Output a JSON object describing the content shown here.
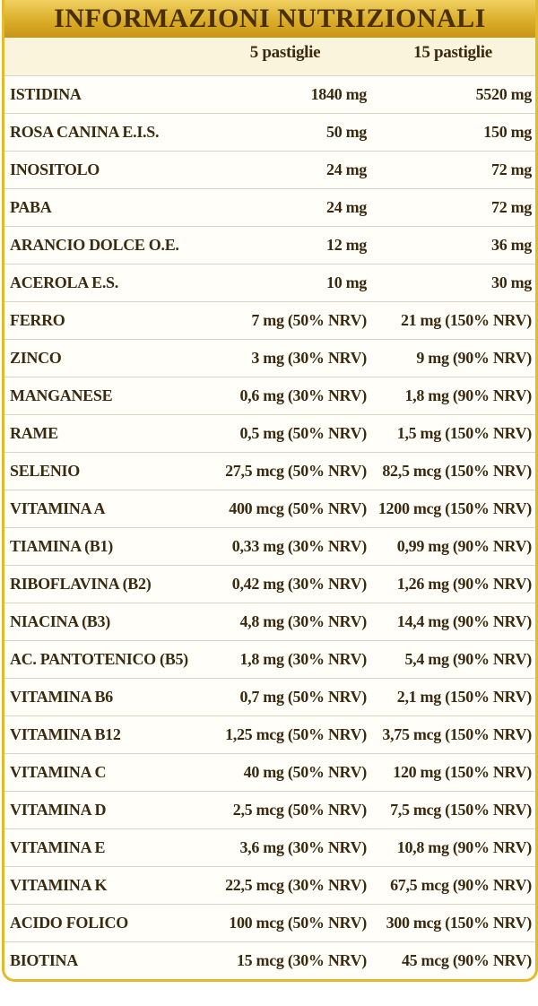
{
  "header": {
    "title": "INFORMAZIONI NUTRIZIONALI"
  },
  "table": {
    "columns": [
      "5 pastiglie",
      "15 pastiglie"
    ],
    "rows": [
      [
        "ISTIDINA",
        "1840 mg",
        "5520 mg"
      ],
      [
        "ROSA CANINA E.I.S.",
        "50 mg",
        "150 mg"
      ],
      [
        "INOSITOLO",
        "24 mg",
        "72 mg"
      ],
      [
        "PABA",
        "24 mg",
        "72 mg"
      ],
      [
        "ARANCIO DOLCE O.E.",
        "12 mg",
        "36 mg"
      ],
      [
        "ACEROLA E.S.",
        "10 mg",
        "30 mg"
      ],
      [
        "FERRO",
        "7 mg (50% NRV)",
        "21 mg (150% NRV)"
      ],
      [
        "ZINCO",
        "3 mg (30% NRV)",
        "9 mg (90% NRV)"
      ],
      [
        "MANGANESE",
        "0,6 mg (30% NRV)",
        "1,8 mg (90% NRV)"
      ],
      [
        "RAME",
        "0,5 mg (50% NRV)",
        "1,5 mg (150% NRV)"
      ],
      [
        "SELENIO",
        "27,5 mcg (50% NRV)",
        "82,5 mcg (150% NRV)"
      ],
      [
        "VITAMINA A",
        "400 mcg (50% NRV)",
        "1200 mcg (150% NRV)"
      ],
      [
        "TIAMINA (B1)",
        "0,33 mg (30% NRV)",
        "0,99 mg (90% NRV)"
      ],
      [
        "RIBOFLAVINA (B2)",
        "0,42 mg (30% NRV)",
        "1,26 mg (90% NRV)"
      ],
      [
        "NIACINA (B3)",
        "4,8 mg (30% NRV)",
        "14,4 mg (90% NRV)"
      ],
      [
        "AC. PANTOTENICO (B5)",
        "1,8 mg (30% NRV)",
        "5,4 mg (90% NRV)"
      ],
      [
        "VITAMINA B6",
        "0,7 mg (50% NRV)",
        "2,1 mg (150% NRV)"
      ],
      [
        "VITAMINA B12",
        "1,25 mcg (50% NRV)",
        "3,75 mcg (150% NRV)"
      ],
      [
        "VITAMINA C",
        "40 mg (50% NRV)",
        "120 mg (150% NRV)"
      ],
      [
        "VITAMINA D",
        "2,5 mcg (50% NRV)",
        "7,5 mcg (150% NRV)"
      ],
      [
        "VITAMINA E",
        "3,6 mg (30% NRV)",
        "10,8 mg (90% NRV)"
      ],
      [
        "VITAMINA K",
        "22,5 mcg (30% NRV)",
        "67,5 mcg (90% NRV)"
      ],
      [
        "ACIDO FOLICO",
        "100 mcg (50% NRV)",
        "300 mcg (150% NRV)"
      ],
      [
        "BIOTINA",
        "15 mcg (30% NRV)",
        "45 mcg (90% NRV)"
      ]
    ]
  }
}
